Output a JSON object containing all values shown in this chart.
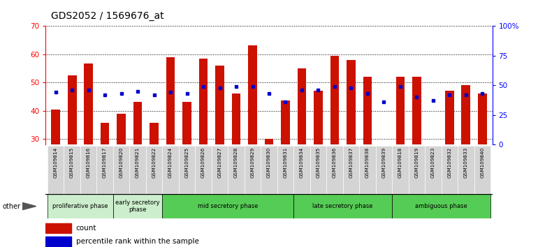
{
  "title": "GDS2052 / 1569676_at",
  "samples": [
    "GSM109814",
    "GSM109815",
    "GSM109816",
    "GSM109817",
    "GSM109820",
    "GSM109821",
    "GSM109822",
    "GSM109824",
    "GSM109825",
    "GSM109826",
    "GSM109827",
    "GSM109828",
    "GSM109829",
    "GSM109830",
    "GSM109831",
    "GSM109834",
    "GSM109835",
    "GSM109836",
    "GSM109837",
    "GSM109838",
    "GSM109839",
    "GSM109818",
    "GSM109819",
    "GSM109823",
    "GSM109832",
    "GSM109833",
    "GSM109840"
  ],
  "counts": [
    40.3,
    52.5,
    56.8,
    35.8,
    39.0,
    43.0,
    35.8,
    59.0,
    43.0,
    58.5,
    56.0,
    46.0,
    63.0,
    30.0,
    43.5,
    55.0,
    47.0,
    59.5,
    58.0,
    52.0,
    27.0,
    52.0,
    52.0,
    26.0,
    47.0,
    49.0,
    46.0
  ],
  "percentiles": [
    44,
    46,
    46,
    42,
    43,
    45,
    42,
    44,
    43,
    49,
    48,
    49,
    49,
    43,
    36,
    46,
    46,
    49,
    48,
    43,
    36,
    49,
    40,
    37,
    42,
    42,
    43
  ],
  "phases": [
    {
      "label": "proliferative phase",
      "start": 0,
      "end": 3,
      "color": "#cceecc"
    },
    {
      "label": "early secretory\nphase",
      "start": 4,
      "end": 6,
      "color": "#cceecc"
    },
    {
      "label": "mid secretory phase",
      "start": 7,
      "end": 14,
      "color": "#55cc55"
    },
    {
      "label": "late secretory phase",
      "start": 15,
      "end": 20,
      "color": "#55cc55"
    },
    {
      "label": "ambiguous phase",
      "start": 21,
      "end": 26,
      "color": "#55cc55"
    }
  ],
  "ylim_left": [
    28,
    70
  ],
  "ylim_right": [
    0,
    100
  ],
  "yticks_left": [
    30,
    40,
    50,
    60,
    70
  ],
  "yticks_right": [
    0,
    25,
    50,
    75,
    100
  ],
  "bar_color": "#cc1100",
  "dot_color": "#0000cc",
  "title_fontsize": 10,
  "bar_width": 0.55
}
